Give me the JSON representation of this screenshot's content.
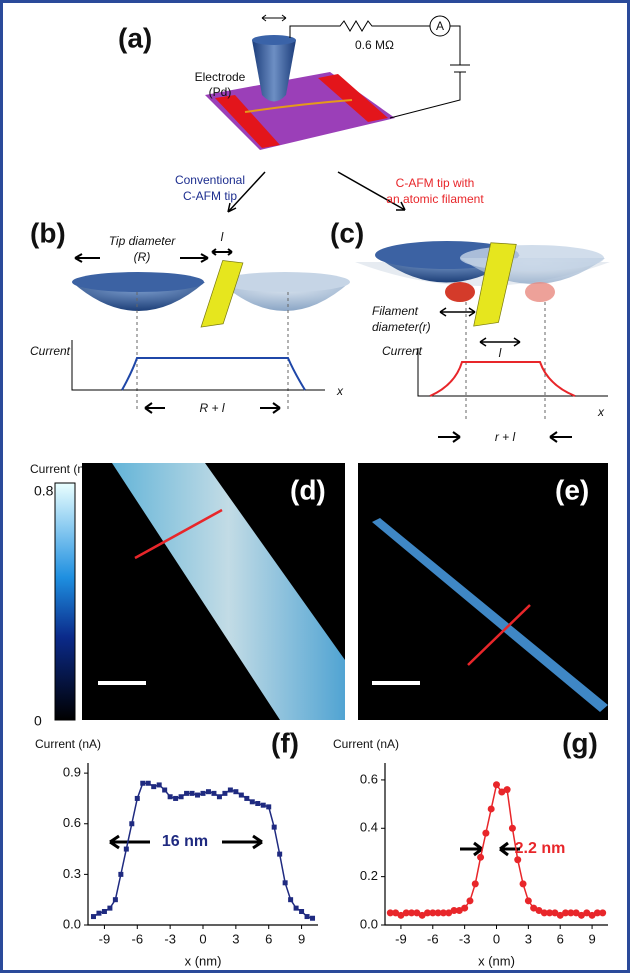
{
  "panel_a": {
    "label": "(a)",
    "resistor": "0.6 MΩ",
    "ammeter": "A",
    "electrode": [
      "Electrode",
      "(Pd)"
    ],
    "conventional": [
      "Conventional",
      "C-AFM tip"
    ],
    "filament_tip": [
      "C-AFM tip with",
      "an atomic filament"
    ]
  },
  "panel_b": {
    "label": "(b)",
    "tip_diameter": [
      "Tip diameter",
      "(R)"
    ],
    "l": "l",
    "current": "Current",
    "x": "x",
    "width": "R + l"
  },
  "panel_c": {
    "label": "(c)",
    "filament_diameter": [
      "Filament",
      "diameter(r)"
    ],
    "l": "l",
    "current": "Current",
    "x": "x",
    "width": "r + l"
  },
  "panel_d": {
    "label": "(d)",
    "colorbar_title": "Current (nA)",
    "colorbar_max": "0.8",
    "colorbar_min": "0"
  },
  "panel_e": {
    "label": "(e)"
  },
  "chart_data": [
    {
      "type": "line",
      "label": "(f)",
      "y_label": "Current (nA)",
      "x_label": "x (nm)",
      "marker": "square",
      "annotations": [
        "16 nm"
      ],
      "x": [
        -10,
        -9.5,
        -9,
        -8.5,
        -8,
        -7.5,
        -7,
        -6.5,
        -6,
        -5.5,
        -5,
        -4.5,
        -4,
        -3.5,
        -3,
        -2.5,
        -2,
        -1.5,
        -1,
        -0.5,
        0,
        0.5,
        1,
        1.5,
        2,
        2.5,
        3,
        3.5,
        4,
        4.5,
        5,
        5.5,
        6,
        6.5,
        7,
        7.5,
        8,
        8.5,
        9,
        9.5,
        10
      ],
      "series": [
        {
          "color": "#1f2a80",
          "values": [
            0.05,
            0.07,
            0.08,
            0.1,
            0.15,
            0.3,
            0.45,
            0.6,
            0.75,
            0.84,
            0.84,
            0.82,
            0.83,
            0.8,
            0.76,
            0.75,
            0.76,
            0.78,
            0.78,
            0.77,
            0.78,
            0.79,
            0.78,
            0.76,
            0.78,
            0.8,
            0.79,
            0.77,
            0.75,
            0.73,
            0.72,
            0.71,
            0.7,
            0.58,
            0.42,
            0.25,
            0.15,
            0.1,
            0.08,
            0.05,
            0.04
          ]
        }
      ],
      "xlim": [
        -10.5,
        10.5
      ],
      "xticks": [
        -9,
        -6,
        -3,
        0,
        3,
        6,
        9
      ],
      "ylim": [
        0,
        0.96
      ],
      "yticks": [
        {
          "value": 0,
          "label": "0.0"
        },
        0.3,
        0.6,
        0.9
      ]
    },
    {
      "type": "line",
      "label": "(g)",
      "y_label": "Current (nA)",
      "x_label": "x (nm)",
      "marker": "circle",
      "annotations": [
        "2.2 nm"
      ],
      "x": [
        -10,
        -9.5,
        -9,
        -8.5,
        -8,
        -7.5,
        -7,
        -6.5,
        -6,
        -5.5,
        -5,
        -4.5,
        -4,
        -3.5,
        -3,
        -2.5,
        -2,
        -1.5,
        -1,
        -0.5,
        0,
        0.5,
        1,
        1.5,
        2,
        2.5,
        3,
        3.5,
        4,
        4.5,
        5,
        5.5,
        6,
        6.5,
        7,
        7.5,
        8,
        8.5,
        9,
        9.5,
        10
      ],
      "series": [
        {
          "color": "#e8262a",
          "values": [
            0.05,
            0.05,
            0.04,
            0.05,
            0.05,
            0.05,
            0.04,
            0.05,
            0.05,
            0.05,
            0.05,
            0.05,
            0.06,
            0.06,
            0.07,
            0.1,
            0.17,
            0.28,
            0.38,
            0.48,
            0.58,
            0.55,
            0.56,
            0.4,
            0.27,
            0.17,
            0.1,
            0.07,
            0.06,
            0.05,
            0.05,
            0.05,
            0.04,
            0.05,
            0.05,
            0.05,
            0.04,
            0.05,
            0.04,
            0.05,
            0.05
          ]
        }
      ],
      "xlim": [
        -10.5,
        10.5
      ],
      "xticks": [
        -9,
        -6,
        -3,
        0,
        3,
        6,
        9
      ],
      "ylim": [
        0,
        0.67
      ],
      "yticks": [
        {
          "value": 0,
          "label": "0.0"
        },
        0.2,
        0.4,
        0.6
      ]
    }
  ]
}
